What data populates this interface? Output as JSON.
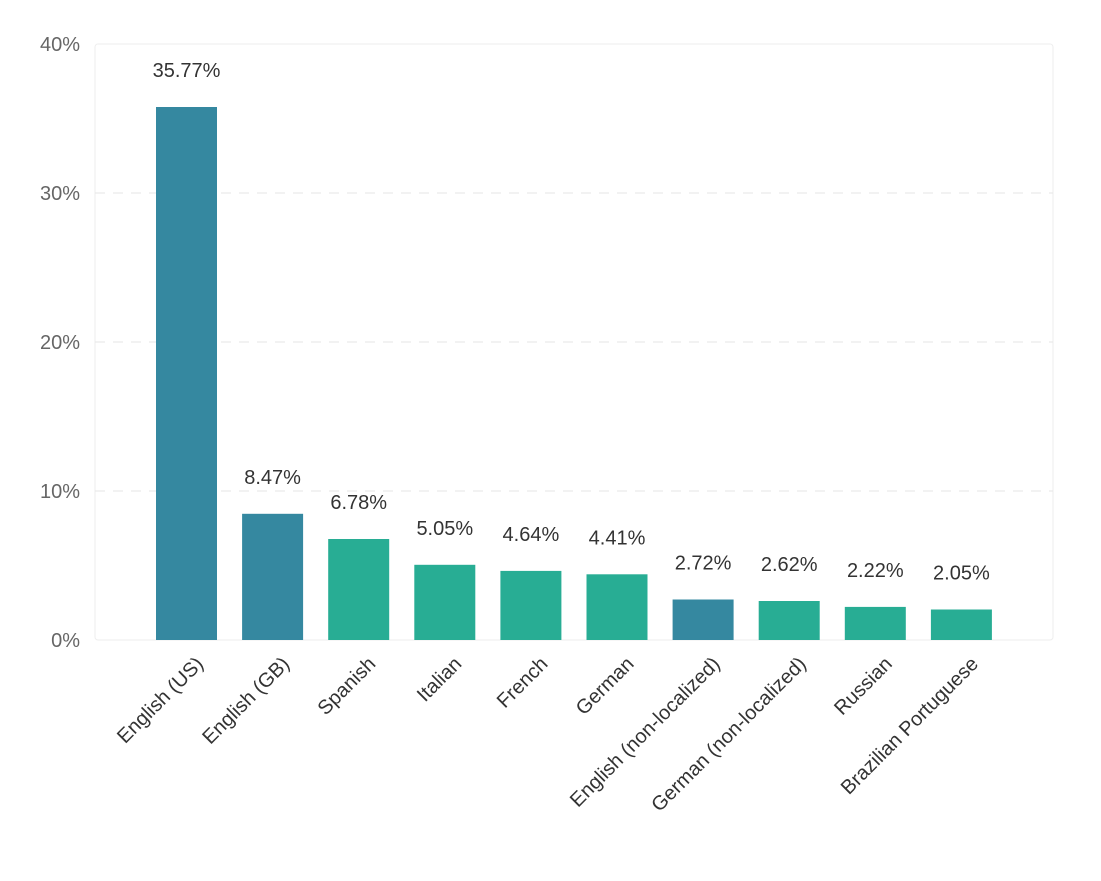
{
  "chart_data": {
    "type": "bar",
    "categories": [
      "English (US)",
      "English (GB)",
      "Spanish",
      "Italian",
      "French",
      "German",
      "English (non-localized)",
      "German (non-localized)",
      "Russian",
      "Brazilian Portuguese"
    ],
    "values": [
      35.77,
      8.47,
      6.78,
      5.05,
      4.64,
      4.41,
      2.72,
      2.62,
      2.22,
      2.05
    ],
    "value_labels": [
      "35.77%",
      "8.47%",
      "6.78%",
      "5.05%",
      "4.64%",
      "4.41%",
      "2.72%",
      "2.62%",
      "2.22%",
      "2.05%"
    ],
    "bar_groups": [
      "english",
      "english",
      "other",
      "other",
      "other",
      "other",
      "english",
      "other",
      "other",
      "other"
    ],
    "ylim": [
      0,
      40
    ],
    "y_ticks": [
      0,
      10,
      20,
      30,
      40
    ],
    "y_tick_labels": [
      "0%",
      "10%",
      "20%",
      "30%",
      "40%"
    ],
    "grid": true,
    "colors": {
      "english": "#3588a0",
      "other": "#28ad94"
    }
  }
}
